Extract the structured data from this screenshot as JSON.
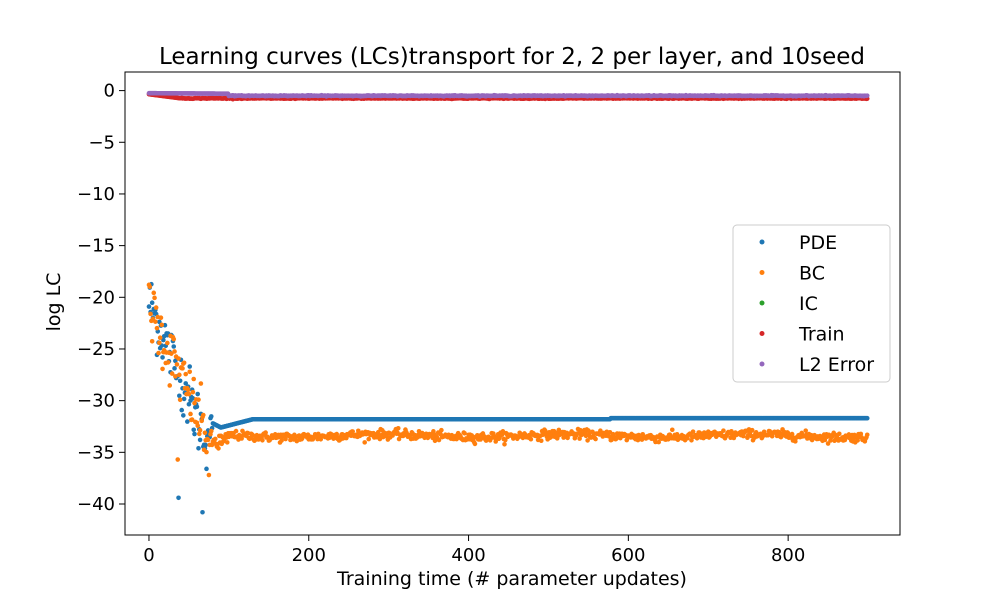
{
  "chart_data": {
    "type": "scatter",
    "title": "Learning curves (LCs)transport for 2, 2 per layer, and 10seed",
    "xlabel": "Training time (# parameter updates)",
    "ylabel": "log LC",
    "xlim": [
      -30,
      940
    ],
    "ylim": [
      -43,
      1.8
    ],
    "xticks": [
      0,
      200,
      400,
      600,
      800
    ],
    "xtick_labels": [
      "0",
      "200",
      "400",
      "600",
      "800"
    ],
    "yticks": [
      0,
      -5,
      -10,
      -15,
      -20,
      -25,
      -30,
      -35,
      -40
    ],
    "ytick_labels": [
      "0",
      "−5",
      "−10",
      "−15",
      "−20",
      "−25",
      "−30",
      "−35",
      "−40"
    ],
    "grid": false,
    "legend_position": "right",
    "n_points": 900,
    "series": [
      {
        "name": "PDE",
        "color": "#1f77b4",
        "visible": true,
        "curve": "pde",
        "start": -20.4,
        "plateau": -31.8,
        "late_value": -31.7,
        "min_value": -40.8,
        "notes_points": [
          [
            37,
            -39.4
          ],
          [
            67,
            -40.8
          ],
          [
            72,
            -36.6
          ],
          [
            90,
            -32.6
          ],
          [
            130,
            -31.8
          ],
          [
            575,
            -31.8
          ],
          [
            580,
            -31.7
          ],
          [
            899,
            -31.7
          ]
        ]
      },
      {
        "name": "BC",
        "color": "#ff7f0e",
        "visible": true,
        "curve": "bc",
        "start": -21.0,
        "plateau": -33.4,
        "min_value": -37.2,
        "notes_points": [
          [
            36,
            -35.7
          ],
          [
            75,
            -37.2
          ],
          [
            100,
            -33.5
          ],
          [
            400,
            -33.3
          ],
          [
            700,
            -33.0
          ],
          [
            899,
            -33.3
          ]
        ]
      },
      {
        "name": "IC",
        "color": "#2ca02c",
        "visible": false,
        "curve": "ic",
        "start": -0.3,
        "plateau": -0.7
      },
      {
        "name": "Train",
        "color": "#d62728",
        "visible": true,
        "curve": "train",
        "start": -0.35,
        "plateau": -0.75
      },
      {
        "name": "L2 Error",
        "color": "#9467bd",
        "visible": true,
        "curve": "l2",
        "start": -0.25,
        "plateau": -0.5
      }
    ]
  }
}
